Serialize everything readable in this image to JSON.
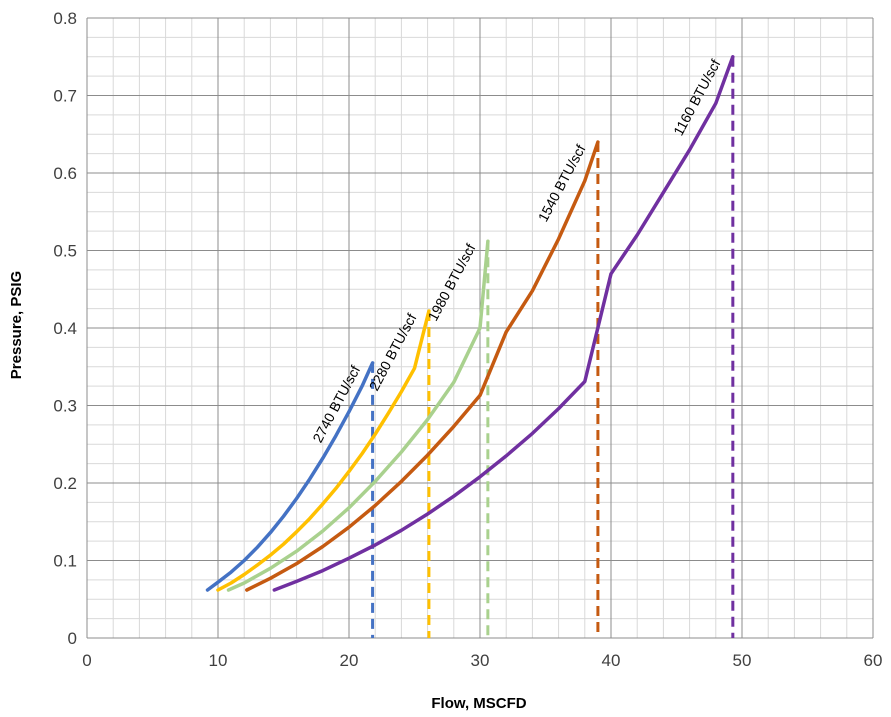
{
  "chart_data": {
    "type": "line",
    "title": "",
    "xlabel": "Flow, MSCFD",
    "ylabel": "Pressure, PSIG",
    "xlim": [
      0,
      60
    ],
    "ylim": [
      0,
      0.8
    ],
    "x_ticks": [
      "0",
      "10",
      "20",
      "30",
      "40",
      "50",
      "60"
    ],
    "y_ticks": [
      "0",
      "0.1",
      "0.2",
      "0.3",
      "0.4",
      "0.5",
      "0.6",
      "0.7",
      "0.8"
    ],
    "x_tick_values": [
      0,
      10,
      20,
      30,
      40,
      50,
      60
    ],
    "y_tick_values": [
      0,
      0.1,
      0.2,
      0.3,
      0.4,
      0.5,
      0.6,
      0.7,
      0.8
    ],
    "minor_grid": {
      "x_step": 2,
      "y_step": 0.025
    },
    "grid": true,
    "legend": "none",
    "series": [
      {
        "name": "2740 BTU/scf",
        "color": "#4472C4",
        "x": [
          9.2,
          10,
          11,
          12,
          13,
          14,
          15,
          16,
          17,
          18,
          19,
          20,
          21,
          21.8
        ],
        "y": [
          0.062,
          0.072,
          0.085,
          0.1,
          0.117,
          0.136,
          0.157,
          0.18,
          0.205,
          0.232,
          0.261,
          0.292,
          0.325,
          0.355
        ],
        "max_flow": 21.8
      },
      {
        "name": "2280 BTU/scf",
        "color": "#FFC000",
        "x": [
          10,
          11,
          12,
          13,
          14,
          15,
          16,
          17,
          18,
          19,
          20,
          21,
          22,
          23,
          24,
          25,
          26.1
        ],
        "y": [
          0.062,
          0.071,
          0.082,
          0.094,
          0.107,
          0.121,
          0.137,
          0.154,
          0.173,
          0.193,
          0.215,
          0.238,
          0.263,
          0.29,
          0.318,
          0.348,
          0.422
        ],
        "max_flow": 26.1
      },
      {
        "name": "1980 BTU/scf",
        "color": "#A9D18E",
        "x": [
          10.8,
          12,
          14,
          16,
          18,
          20,
          22,
          24,
          26,
          28,
          30,
          30.6
        ],
        "y": [
          0.062,
          0.071,
          0.09,
          0.112,
          0.138,
          0.168,
          0.202,
          0.24,
          0.282,
          0.33,
          0.4,
          0.512
        ],
        "max_flow": 30.6
      },
      {
        "name": "1540 BTU/scf",
        "color": "#C55A11",
        "x": [
          12.2,
          14,
          16,
          18,
          20,
          22,
          24,
          26,
          28,
          30,
          32,
          34,
          36,
          38,
          39
        ],
        "y": [
          0.062,
          0.077,
          0.096,
          0.118,
          0.143,
          0.171,
          0.202,
          0.236,
          0.273,
          0.313,
          0.395,
          0.448,
          0.515,
          0.59,
          0.64
        ],
        "max_flow": 39
      },
      {
        "name": "1160 BTU/scf",
        "color": "#7030A0",
        "x": [
          14.3,
          16,
          18,
          20,
          22,
          24,
          26,
          28,
          30,
          32,
          34,
          36,
          38,
          40,
          42,
          44,
          46,
          48,
          49.3
        ],
        "y": [
          0.062,
          0.073,
          0.087,
          0.103,
          0.12,
          0.139,
          0.16,
          0.183,
          0.208,
          0.235,
          0.264,
          0.296,
          0.331,
          0.47,
          0.52,
          0.575,
          0.63,
          0.69,
          0.75
        ],
        "max_flow": 49.3
      }
    ]
  }
}
